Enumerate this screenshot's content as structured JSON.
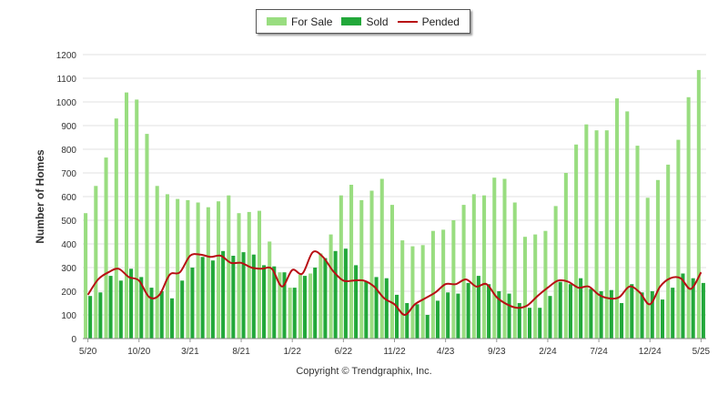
{
  "chart_data": {
    "type": "bar",
    "ylabel": "Number of Homes",
    "ylim": [
      0,
      1200
    ],
    "yticks": [
      0,
      100,
      200,
      300,
      400,
      500,
      600,
      700,
      800,
      900,
      1000,
      1100,
      1200
    ],
    "grid": true,
    "legend_position": "top-center",
    "xtick_labels": [
      {
        "index": 0,
        "label": "5/20"
      },
      {
        "index": 5,
        "label": "10/20"
      },
      {
        "index": 10,
        "label": "3/21"
      },
      {
        "index": 15,
        "label": "8/21"
      },
      {
        "index": 20,
        "label": "1/22"
      },
      {
        "index": 25,
        "label": "6/22"
      },
      {
        "index": 30,
        "label": "11/22"
      },
      {
        "index": 35,
        "label": "4/23"
      },
      {
        "index": 40,
        "label": "9/23"
      },
      {
        "index": 45,
        "label": "2/24"
      },
      {
        "index": 50,
        "label": "7/24"
      },
      {
        "index": 55,
        "label": "12/24"
      },
      {
        "index": 60,
        "label": "5/25"
      }
    ],
    "categories": [
      "5/20",
      "6/20",
      "7/20",
      "8/20",
      "9/20",
      "10/20",
      "11/20",
      "12/20",
      "1/21",
      "2/21",
      "3/21",
      "4/21",
      "5/21",
      "6/21",
      "7/21",
      "8/21",
      "9/21",
      "10/21",
      "11/21",
      "12/21",
      "1/22",
      "2/22",
      "3/22",
      "4/22",
      "5/22",
      "6/22",
      "7/22",
      "8/22",
      "9/22",
      "10/22",
      "11/22",
      "12/22",
      "1/23",
      "2/23",
      "3/23",
      "4/23",
      "5/23",
      "6/23",
      "7/23",
      "8/23",
      "9/23",
      "10/23",
      "11/23",
      "12/23",
      "1/24",
      "2/24",
      "3/24",
      "4/24",
      "5/24",
      "6/24",
      "7/24",
      "8/24",
      "9/24",
      "10/24",
      "11/24",
      "12/24",
      "1/25",
      "2/25",
      "3/25",
      "4/25",
      "5/25"
    ],
    "series": [
      {
        "name": "For Sale",
        "color": "#99dd80",
        "kind": "bar",
        "values": [
          530,
          645,
          765,
          930,
          1040,
          1010,
          865,
          645,
          610,
          590,
          585,
          575,
          555,
          580,
          605,
          530,
          535,
          540,
          410,
          280,
          215,
          270,
          275,
          360,
          440,
          605,
          650,
          585,
          625,
          675,
          565,
          415,
          390,
          395,
          455,
          460,
          500,
          565,
          610,
          605,
          680,
          675,
          575,
          430,
          440,
          455,
          560,
          700,
          820,
          905,
          880,
          880,
          1015,
          960,
          815,
          595,
          670,
          735,
          840,
          1020,
          1135
        ]
      },
      {
        "name": "Sold",
        "color": "#22a83a",
        "kind": "bar",
        "values": [
          180,
          195,
          265,
          245,
          295,
          260,
          215,
          200,
          170,
          245,
          300,
          345,
          330,
          370,
          350,
          365,
          355,
          310,
          305,
          280,
          215,
          265,
          300,
          340,
          370,
          380,
          310,
          240,
          260,
          255,
          185,
          150,
          145,
          100,
          160,
          195,
          190,
          235,
          265,
          230,
          200,
          190,
          150,
          130,
          130,
          180,
          240,
          230,
          255,
          210,
          200,
          205,
          150,
          230,
          195,
          200,
          165,
          215,
          275,
          255,
          235
        ]
      },
      {
        "name": "Pended",
        "color": "#b80f14",
        "kind": "line",
        "values": [
          185,
          250,
          280,
          295,
          260,
          245,
          175,
          185,
          270,
          280,
          350,
          355,
          345,
          350,
          320,
          320,
          300,
          295,
          295,
          220,
          290,
          275,
          365,
          345,
          285,
          245,
          245,
          245,
          220,
          170,
          145,
          100,
          145,
          170,
          195,
          230,
          230,
          250,
          220,
          230,
          175,
          145,
          130,
          140,
          180,
          215,
          245,
          240,
          215,
          220,
          185,
          170,
          175,
          220,
          195,
          145,
          220,
          255,
          255,
          210,
          280
        ]
      }
    ]
  },
  "copyright": "Copyright © Trendgraphix, Inc."
}
